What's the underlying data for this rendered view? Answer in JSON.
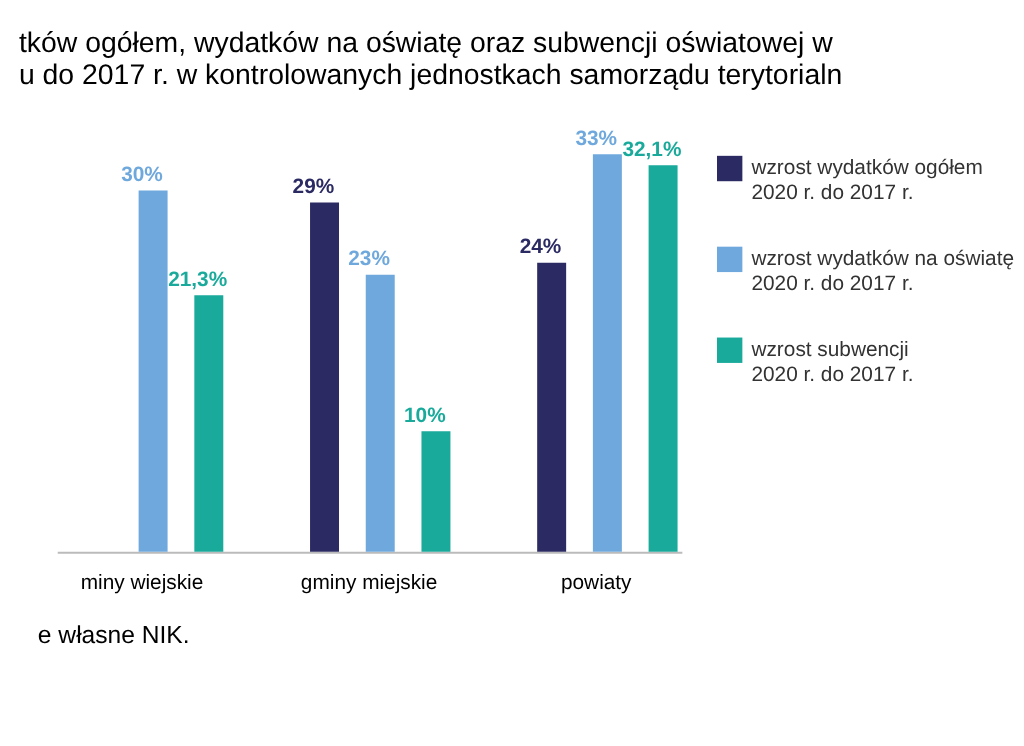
{
  "chart_data": {
    "type": "bar",
    "title": [
      "tków ogółem, wydatków na oświatę oraz subwencji oświatowej w",
      "u do 2017 r. w kontrolowanych jednostkach samorządu terytorialn"
    ],
    "categories": [
      "miny wiejskie",
      "gminy miejskie",
      "powiaty"
    ],
    "series": [
      {
        "name": "wzrost wydatków ogółem\n2020 r. do 2017 r.",
        "color": "#2b2a63",
        "values": [
          null,
          29,
          24
        ],
        "value_labels": [
          null,
          "29%",
          "24%"
        ]
      },
      {
        "name": "wzrost wydatków na oświatę\n2020 r. do 2017 r.",
        "color": "#6fa8dc",
        "values": [
          30,
          23,
          33
        ],
        "value_labels": [
          "30%",
          "23%",
          "33%"
        ]
      },
      {
        "name": "wzrost subwencji\n2020 r. do 2017 r.",
        "color": "#1aaa9b",
        "values": [
          21.3,
          10,
          32.1
        ],
        "value_labels": [
          "21,3%",
          "10%",
          "32,1%"
        ]
      }
    ],
    "tick_labels": "x",
    "legend": "right",
    "annotations": [
      "e własne NIK."
    ]
  }
}
